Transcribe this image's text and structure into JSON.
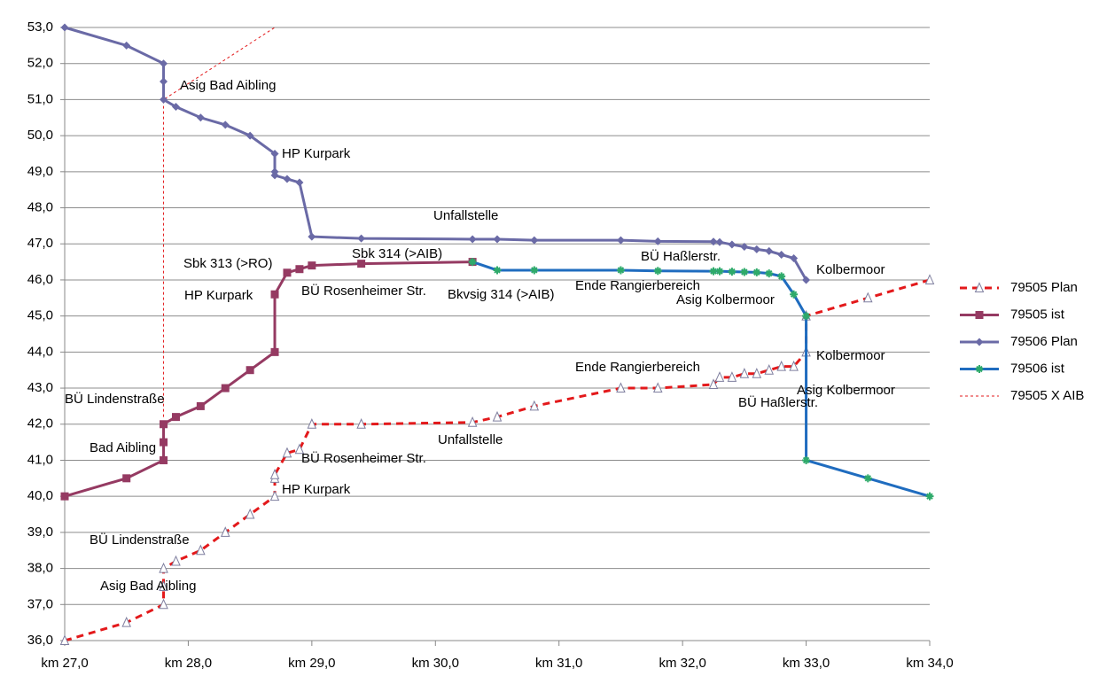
{
  "chart_data": {
    "type": "line",
    "xlim": [
      27,
      34
    ],
    "xticks": [
      {
        "value": 27,
        "label": "km 27,0"
      },
      {
        "value": 28,
        "label": "km 28,0"
      },
      {
        "value": 29,
        "label": "km 29,0"
      },
      {
        "value": 30,
        "label": "km 30,0"
      },
      {
        "value": 31,
        "label": "km 31,0"
      },
      {
        "value": 32,
        "label": "km 32,0"
      },
      {
        "value": 33,
        "label": "km 33,0"
      },
      {
        "value": 34,
        "label": "km 34,0"
      }
    ],
    "ylim": [
      36,
      53
    ],
    "yticks": [
      {
        "value": 36,
        "label": "36,0"
      },
      {
        "value": 37,
        "label": "37,0"
      },
      {
        "value": 38,
        "label": "38,0"
      },
      {
        "value": 39,
        "label": "39,0"
      },
      {
        "value": 40,
        "label": "40,0"
      },
      {
        "value": 41,
        "label": "41,0"
      },
      {
        "value": 42,
        "label": "42,0"
      },
      {
        "value": 43,
        "label": "43,0"
      },
      {
        "value": 44,
        "label": "44,0"
      },
      {
        "value": 45,
        "label": "45,0"
      },
      {
        "value": 46,
        "label": "46,0"
      },
      {
        "value": 47,
        "label": "47,0"
      },
      {
        "value": 48,
        "label": "48,0"
      },
      {
        "value": 49,
        "label": "49,0"
      },
      {
        "value": 50,
        "label": "50,0"
      },
      {
        "value": 51,
        "label": "51,0"
      },
      {
        "value": 52,
        "label": "52,0"
      },
      {
        "value": 53,
        "label": "53,0"
      }
    ],
    "grid": true,
    "legend": "right",
    "series": [
      {
        "name": "79505 Plan",
        "color": "#e3191b",
        "dash": "dashed",
        "marker": "triangle",
        "marker_color": "#7f7f9f",
        "x": [
          27.0,
          27.5,
          27.8,
          27.8,
          27.8,
          27.9,
          28.1,
          28.3,
          28.5,
          28.7,
          28.7,
          28.7,
          28.8,
          28.9,
          29.0,
          29.4,
          30.3,
          30.5,
          30.8,
          31.5,
          31.8,
          32.25,
          32.3,
          32.4,
          32.5,
          32.6,
          32.7,
          32.8,
          32.9,
          33.0,
          33.0,
          33.5,
          34.0
        ],
        "values": [
          36.0,
          36.5,
          37.0,
          37.5,
          38.0,
          38.2,
          38.5,
          39.0,
          39.5,
          40.0,
          40.5,
          40.6,
          41.2,
          41.3,
          42.0,
          42.0,
          42.05,
          42.2,
          42.5,
          43.0,
          43.0,
          43.1,
          43.3,
          43.3,
          43.4,
          43.4,
          43.5,
          43.6,
          43.6,
          44.0,
          45.0,
          45.5,
          46.0
        ]
      },
      {
        "name": "79505 ist",
        "color": "#953a62",
        "dash": "solid",
        "marker": "square",
        "marker_color": "#953a62",
        "x": [
          27.0,
          27.5,
          27.8,
          27.8,
          27.8,
          27.9,
          28.1,
          28.3,
          28.5,
          28.7,
          28.7,
          28.8,
          28.9,
          29.0,
          29.4,
          30.3
        ],
        "values": [
          40.0,
          40.5,
          41.0,
          41.5,
          42.0,
          42.2,
          42.5,
          43.0,
          43.5,
          44.0,
          45.6,
          46.2,
          46.3,
          46.4,
          46.45,
          46.5
        ]
      },
      {
        "name": "79506 Plan",
        "color": "#6a6aa6",
        "dash": "solid",
        "marker": "diamond",
        "marker_color": "#6a6aa6",
        "x": [
          27.0,
          27.5,
          27.8,
          27.8,
          27.8,
          27.9,
          28.1,
          28.3,
          28.5,
          28.7,
          28.7,
          28.7,
          28.8,
          28.9,
          29.0,
          29.4,
          30.3,
          30.5,
          30.8,
          31.5,
          31.8,
          32.25,
          32.3,
          32.4,
          32.5,
          32.6,
          32.7,
          32.8,
          32.9,
          33.0
        ],
        "values": [
          53.0,
          52.5,
          52.0,
          51.5,
          51.0,
          50.8,
          50.5,
          50.3,
          50.0,
          49.5,
          49.0,
          48.9,
          48.8,
          48.7,
          47.2,
          47.15,
          47.13,
          47.13,
          47.1,
          47.1,
          47.07,
          47.06,
          47.05,
          46.98,
          46.92,
          46.85,
          46.8,
          46.7,
          46.6,
          46.0
        ]
      },
      {
        "name": "79506 ist",
        "color": "#1f6cbf",
        "dash": "solid",
        "marker": "star",
        "marker_color": "#2eaa6a",
        "x": [
          30.3,
          30.5,
          30.8,
          31.5,
          31.8,
          32.25,
          32.3,
          32.4,
          32.5,
          32.6,
          32.7,
          32.8,
          32.9,
          33.0,
          33.0,
          33.5,
          34.0
        ],
        "values": [
          46.5,
          46.27,
          46.27,
          46.27,
          46.25,
          46.24,
          46.24,
          46.23,
          46.22,
          46.21,
          46.18,
          46.1,
          45.6,
          45.0,
          41.0,
          40.5,
          40.0
        ]
      },
      {
        "name": "79505 X AIB",
        "color": "#e3191b",
        "dash": "dotted",
        "marker": "none",
        "marker_color": "#e3191b",
        "x": [
          27.8,
          27.8,
          28.7
        ],
        "values": [
          42.2,
          51.0,
          53.0
        ]
      }
    ],
    "annotations": [
      "Asig Bad Aibling",
      "HP Kurpark",
      "Unfallstelle",
      "Sbk 313 (>RO)",
      "Sbk 314 (>AIB)",
      "BÜ Haßlerstr.",
      "Kolbermoor",
      "HP Kurpark",
      "BÜ Rosenheimer Str.",
      "Bkvsig 314 (>AIB)",
      "Ende Rangierbereich",
      "Asig Kolbermoor",
      "Kolbermoor",
      "Ende Rangierbereich",
      "Asig Kolbermoor",
      "BÜ Lindenstraße",
      "BÜ Haßlerstr.",
      "Unfallstelle",
      "Bad Aibling",
      "BÜ Rosenheimer Str.",
      "HP Kurpark",
      "BÜ Lindenstraße",
      "Asig Bad Aibling"
    ]
  }
}
